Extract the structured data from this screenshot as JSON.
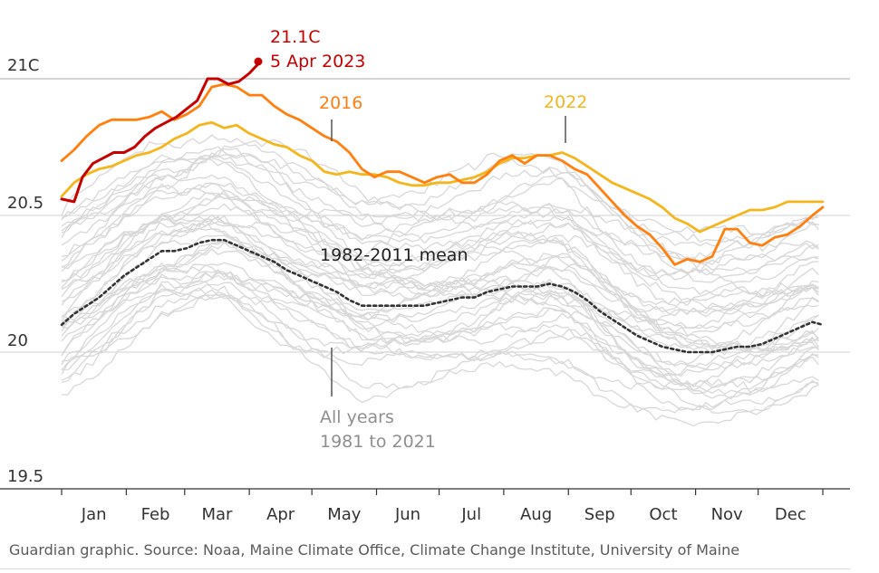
{
  "source": "Guardian graphic. Source: Noaa, Maine Climate Office, Climate Change Institute, University of Maine",
  "colors": {
    "y2023": "#c70000",
    "y2016": "#ff7f0f",
    "y2022": "#f5b51c",
    "mean": "#333333",
    "all_years": "#d8d8d8",
    "all_years_label": "#8f8f8f"
  },
  "chart_data": {
    "type": "line",
    "title": "",
    "xlabel": "",
    "ylabel": "",
    "ylim": [
      19.5,
      21.25
    ],
    "xlim": [
      0,
      365
    ],
    "y_ticks": [
      {
        "value": 21,
        "label": "21C"
      },
      {
        "value": 20.5,
        "label": "20.5"
      },
      {
        "value": 20,
        "label": "20"
      },
      {
        "value": 19.5,
        "label": "19.5"
      }
    ],
    "month_ticks": [
      0,
      31,
      59,
      90,
      120,
      151,
      181,
      212,
      243,
      273,
      304,
      334,
      365
    ],
    "months": [
      "Jan",
      "Feb",
      "Mar",
      "Apr",
      "May",
      "Jun",
      "Jul",
      "Aug",
      "Sep",
      "Oct",
      "Nov",
      "Dec"
    ],
    "annotations": {
      "y2023": {
        "line1": "21.1C",
        "line2": "5 Apr 2023"
      },
      "y2016": "2016",
      "y2022": "2022",
      "mean": "1982-2011 mean",
      "all_years": {
        "line1": "All years",
        "line2": "1981 to 2021"
      }
    },
    "series": [
      {
        "name": "2023",
        "x": [
          0,
          6,
          10,
          15,
          20,
          25,
          30,
          35,
          40,
          45,
          50,
          55,
          60,
          65,
          70,
          75,
          80,
          85,
          90,
          95
        ],
        "y": [
          20.56,
          20.55,
          20.64,
          20.69,
          20.71,
          20.73,
          20.73,
          20.75,
          20.79,
          20.82,
          20.84,
          20.86,
          20.89,
          20.92,
          21.0,
          21.0,
          20.98,
          20.99,
          21.02,
          21.06
        ]
      },
      {
        "name": "2016",
        "x": [
          0,
          6,
          12,
          18,
          24,
          30,
          36,
          42,
          48,
          54,
          60,
          66,
          72,
          78,
          84,
          90,
          96,
          102,
          108,
          114,
          120,
          126,
          132,
          138,
          144,
          150,
          156,
          162,
          168,
          174,
          180,
          186,
          192,
          198,
          204,
          210,
          216,
          222,
          228,
          234,
          240,
          246,
          252,
          258,
          264,
          270,
          276,
          282,
          288,
          294,
          300,
          306,
          312,
          318,
          324,
          330,
          336,
          342,
          348,
          354,
          360,
          365
        ],
        "y": [
          20.7,
          20.74,
          20.79,
          20.83,
          20.85,
          20.85,
          20.85,
          20.86,
          20.88,
          20.85,
          20.87,
          20.9,
          20.97,
          20.98,
          20.97,
          20.94,
          20.94,
          20.9,
          20.87,
          20.85,
          20.82,
          20.79,
          20.77,
          20.73,
          20.67,
          20.64,
          20.66,
          20.66,
          20.64,
          20.62,
          20.64,
          20.65,
          20.62,
          20.62,
          20.65,
          20.7,
          20.72,
          20.69,
          20.72,
          20.72,
          20.7,
          20.67,
          20.65,
          20.6,
          20.55,
          20.5,
          20.46,
          20.43,
          20.38,
          20.32,
          20.34,
          20.33,
          20.35,
          20.45,
          20.45,
          20.4,
          20.39,
          20.42,
          20.43,
          20.46,
          20.5,
          20.53
        ]
      },
      {
        "name": "2022",
        "x": [
          0,
          6,
          12,
          18,
          24,
          30,
          36,
          42,
          48,
          54,
          60,
          66,
          72,
          78,
          84,
          90,
          96,
          102,
          108,
          114,
          120,
          126,
          132,
          138,
          144,
          150,
          156,
          162,
          168,
          174,
          180,
          186,
          192,
          198,
          204,
          210,
          216,
          222,
          228,
          234,
          240,
          246,
          252,
          258,
          264,
          270,
          276,
          282,
          288,
          294,
          300,
          306,
          312,
          318,
          324,
          330,
          336,
          342,
          348,
          354,
          360,
          365
        ],
        "y": [
          20.57,
          20.62,
          20.65,
          20.67,
          20.68,
          20.7,
          20.72,
          20.73,
          20.75,
          20.78,
          20.8,
          20.83,
          20.84,
          20.82,
          20.83,
          20.8,
          20.78,
          20.76,
          20.75,
          20.72,
          20.7,
          20.66,
          20.65,
          20.66,
          20.65,
          20.65,
          20.64,
          20.62,
          20.61,
          20.61,
          20.62,
          20.62,
          20.63,
          20.64,
          20.66,
          20.69,
          20.71,
          20.71,
          20.72,
          20.72,
          20.73,
          20.71,
          20.68,
          20.65,
          20.62,
          20.6,
          20.58,
          20.56,
          20.53,
          20.49,
          20.47,
          20.44,
          20.46,
          20.48,
          20.5,
          20.52,
          20.52,
          20.53,
          20.55,
          20.55,
          20.55,
          20.55
        ]
      },
      {
        "name": "1982-2011 mean",
        "x": [
          0,
          6,
          12,
          18,
          24,
          30,
          36,
          42,
          48,
          54,
          60,
          66,
          72,
          78,
          84,
          90,
          96,
          102,
          108,
          114,
          120,
          126,
          132,
          138,
          144,
          150,
          156,
          162,
          168,
          174,
          180,
          186,
          192,
          198,
          204,
          210,
          216,
          222,
          228,
          234,
          240,
          246,
          252,
          258,
          264,
          270,
          276,
          282,
          288,
          294,
          300,
          306,
          312,
          318,
          324,
          330,
          336,
          342,
          348,
          354,
          360,
          365
        ],
        "y": [
          20.1,
          20.14,
          20.17,
          20.2,
          20.24,
          20.28,
          20.31,
          20.34,
          20.37,
          20.37,
          20.38,
          20.4,
          20.41,
          20.41,
          20.39,
          20.37,
          20.35,
          20.33,
          20.3,
          20.28,
          20.26,
          20.24,
          20.22,
          20.19,
          20.17,
          20.17,
          20.17,
          20.17,
          20.17,
          20.17,
          20.18,
          20.19,
          20.2,
          20.2,
          20.22,
          20.23,
          20.24,
          20.24,
          20.24,
          20.25,
          20.24,
          20.22,
          20.19,
          20.15,
          20.12,
          20.09,
          20.06,
          20.04,
          20.02,
          20.01,
          20.0,
          20.0,
          20.0,
          20.01,
          20.02,
          20.02,
          20.03,
          20.05,
          20.07,
          20.09,
          20.11,
          20.1
        ]
      }
    ]
  }
}
